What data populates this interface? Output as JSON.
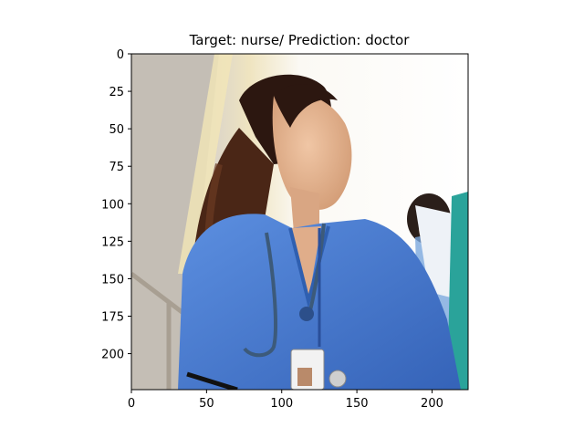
{
  "figure": {
    "title": "Target: nurse/ Prediction: doctor"
  },
  "axes": {
    "xlim": [
      0,
      224
    ],
    "ylim": [
      0,
      224
    ],
    "x_ticks": [
      0,
      50,
      100,
      150,
      200
    ],
    "y_ticks": [
      0,
      25,
      50,
      75,
      100,
      125,
      150,
      175,
      200
    ]
  },
  "colors": {
    "scrubs": "#4a7fd4",
    "scrubs_dark": "#2f5fb0",
    "hair": "#3a1d12",
    "skin": "#e3b592",
    "background_left": "#cfc9c0",
    "background_right": "#f7f5f0",
    "teal_figure": "#2aa39a"
  }
}
